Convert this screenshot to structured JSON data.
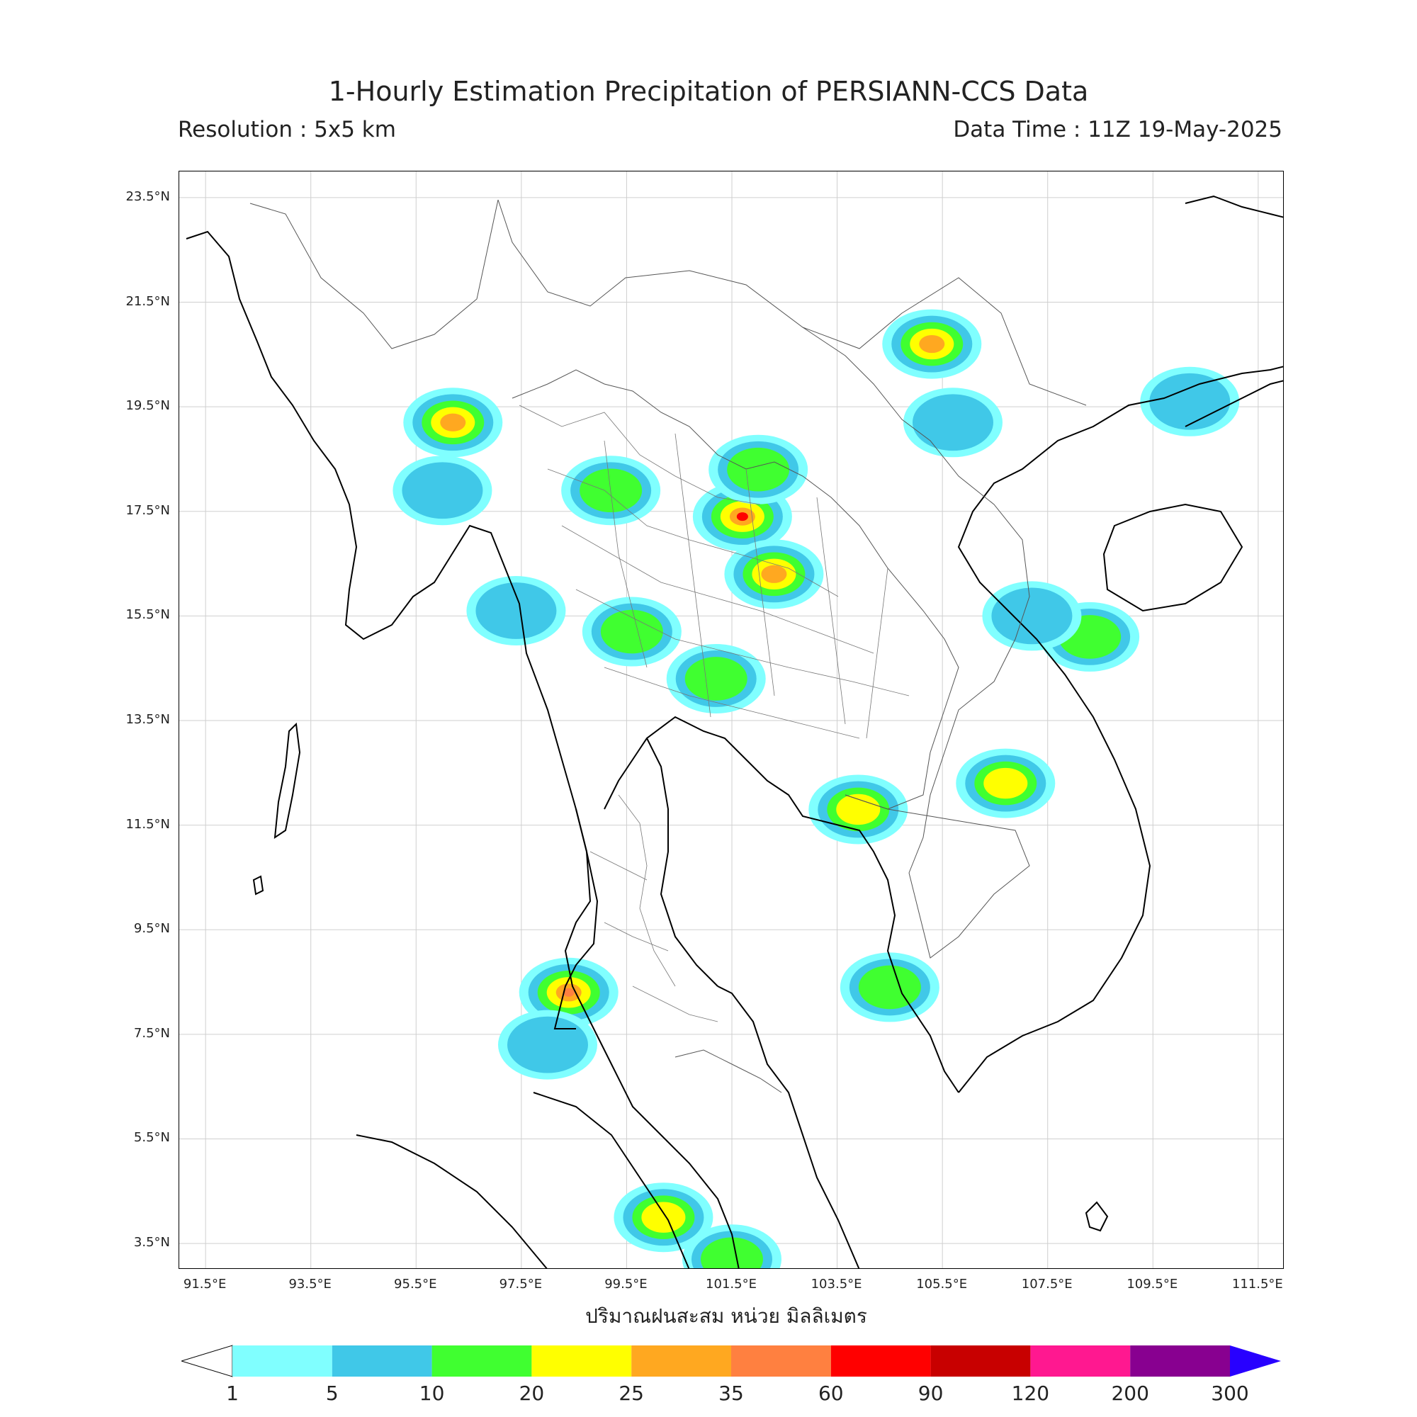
{
  "header": {
    "title": "1-Hourly Estimation Precipitation of PERSIANN-CCS Data",
    "resolution": "Resolution : 5x5 km",
    "data_time": "Data Time : 11Z 19-May-2025"
  },
  "axes": {
    "lat_labels": [
      "23.5°N",
      "21.5°N",
      "19.5°N",
      "17.5°N",
      "15.5°N",
      "13.5°N",
      "11.5°N",
      "9.5°N",
      "7.5°N",
      "5.5°N",
      "3.5°N"
    ],
    "lon_labels": [
      "91.5°E",
      "93.5°E",
      "95.5°E",
      "97.5°E",
      "99.5°E",
      "101.5°E",
      "103.5°E",
      "105.5°E",
      "107.5°E",
      "109.5°E",
      "111.5°E"
    ],
    "x_caption": "ปริมาณฝนสะสม หน่วย มิลลิเมตร"
  },
  "colorbar": {
    "ticks": [
      "1",
      "5",
      "10",
      "20",
      "25",
      "35",
      "60",
      "90",
      "120",
      "200",
      "300"
    ],
    "colors": [
      "#80ffff",
      "#40c8e8",
      "#40ff30",
      "#ffff00",
      "#ffa820",
      "#ff8040",
      "#ff0000",
      "#c80000",
      "#ff1890",
      "#880090"
    ],
    "extend_low_color": "#ffffff",
    "extend_high_color": "#2800ff"
  },
  "map": {
    "lon_range": [
      91,
      112
    ],
    "lat_range": [
      3,
      24
    ],
    "grid_lons": [
      91.5,
      93.5,
      95.5,
      97.5,
      99.5,
      101.5,
      103.5,
      105.5,
      107.5,
      109.5,
      111.5
    ],
    "grid_lats": [
      23.5,
      21.5,
      19.5,
      17.5,
      15.5,
      13.5,
      11.5,
      9.5,
      7.5,
      5.5,
      3.5
    ],
    "rain_cells": [
      {
        "lon": 98.4,
        "lat": 8.3,
        "mm": 35
      },
      {
        "lon": 101.7,
        "lat": 17.4,
        "mm": 60
      },
      {
        "lon": 105.3,
        "lat": 20.7,
        "mm": 25
      },
      {
        "lon": 103.9,
        "lat": 11.8,
        "mm": 20
      },
      {
        "lon": 106.7,
        "lat": 12.3,
        "mm": 20
      },
      {
        "lon": 101.2,
        "lat": 14.3,
        "mm": 10
      },
      {
        "lon": 99.6,
        "lat": 15.2,
        "mm": 10
      },
      {
        "lon": 96.2,
        "lat": 19.2,
        "mm": 25
      },
      {
        "lon": 102.3,
        "lat": 16.3,
        "mm": 25
      },
      {
        "lon": 99.2,
        "lat": 17.9,
        "mm": 10
      },
      {
        "lon": 102.0,
        "lat": 18.3,
        "mm": 10
      },
      {
        "lon": 100.2,
        "lat": 4.0,
        "mm": 20
      },
      {
        "lon": 96.0,
        "lat": 17.9,
        "mm": 5
      },
      {
        "lon": 108.3,
        "lat": 15.1,
        "mm": 10
      },
      {
        "lon": 110.2,
        "lat": 19.6,
        "mm": 5
      },
      {
        "lon": 97.4,
        "lat": 15.6,
        "mm": 5
      },
      {
        "lon": 98.0,
        "lat": 7.3,
        "mm": 5
      },
      {
        "lon": 104.5,
        "lat": 8.4,
        "mm": 10
      },
      {
        "lon": 101.5,
        "lat": 3.2,
        "mm": 10
      },
      {
        "lon": 105.7,
        "lat": 19.2,
        "mm": 5
      },
      {
        "lon": 107.2,
        "lat": 15.5,
        "mm": 5
      }
    ]
  }
}
